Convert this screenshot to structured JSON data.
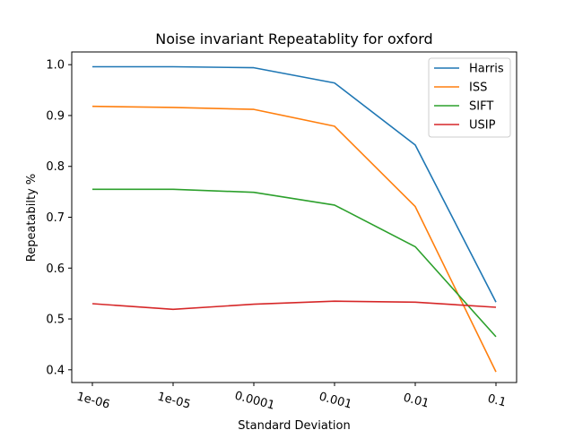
{
  "chart_data": {
    "type": "line",
    "title": "Noise invariant Repeatablity for oxford",
    "xlabel": "Standard Deviation",
    "ylabel": "Repeatabilty %",
    "x": [
      "1e-06",
      "1e-05",
      "0.0001",
      "0.001",
      "0.01",
      "0.1"
    ],
    "ylim": [
      0.375,
      1.025
    ],
    "yticks": [
      0.4,
      0.5,
      0.6,
      0.7,
      0.8,
      0.9,
      1.0
    ],
    "ytick_labels": [
      "0.4",
      "0.5",
      "0.6",
      "0.7",
      "0.8",
      "0.9",
      "1.0"
    ],
    "grid": false,
    "legend_position": "top-right",
    "series": [
      {
        "name": "Harris",
        "color": "#1f77b4",
        "values": [
          0.996,
          0.996,
          0.994,
          0.964,
          0.842,
          0.533
        ]
      },
      {
        "name": "ISS",
        "color": "#ff7f0e",
        "values": [
          0.918,
          0.916,
          0.912,
          0.879,
          0.721,
          0.396
        ]
      },
      {
        "name": "SIFT",
        "color": "#2ca02c",
        "values": [
          0.755,
          0.755,
          0.749,
          0.724,
          0.642,
          0.465
        ]
      },
      {
        "name": "USIP",
        "color": "#d62728",
        "values": [
          0.53,
          0.519,
          0.529,
          0.535,
          0.533,
          0.523
        ]
      }
    ]
  }
}
